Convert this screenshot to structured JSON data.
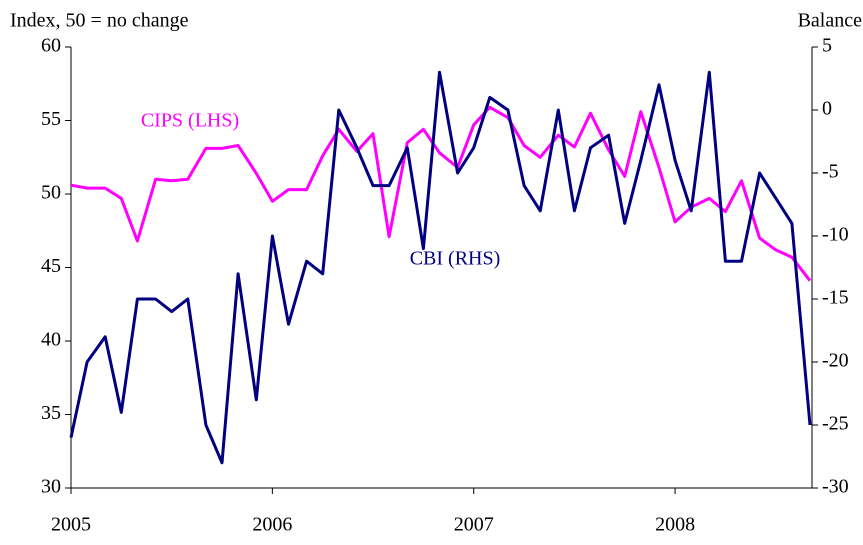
{
  "chart_data": {
    "type": "line",
    "y_label": "Index, 50 = no change",
    "y2_label": "Balance",
    "x": [
      2005,
      2005.08,
      2005.17,
      2005.25,
      2005.33,
      2005.42,
      2005.5,
      2005.58,
      2005.67,
      2005.75,
      2005.83,
      2005.92,
      2006,
      2006.08,
      2006.17,
      2006.25,
      2006.33,
      2006.42,
      2006.5,
      2006.58,
      2006.67,
      2006.75,
      2006.83,
      2006.92,
      2007,
      2007.08,
      2007.17,
      2007.25,
      2007.33,
      2007.42,
      2007.5,
      2007.58,
      2007.67,
      2007.75,
      2007.83,
      2007.92,
      2008,
      2008.08,
      2008.17,
      2008.25,
      2008.33,
      2008.42,
      2008.5,
      2008.58,
      2008.67
    ],
    "xlim": [
      2005,
      2008.68
    ],
    "xticks": [
      2005,
      2006,
      2007,
      2008
    ],
    "ylim": [
      30,
      60
    ],
    "yticks": [
      30,
      35,
      40,
      45,
      50,
      55,
      60
    ],
    "y2lim": [
      -30,
      5
    ],
    "y2ticks": [
      -30,
      -25,
      -20,
      -15,
      -10,
      -5,
      0,
      5
    ],
    "grid": false,
    "series": [
      {
        "name": "CIPS (LHS)",
        "color": "#ff00ff",
        "axis": "y",
        "values": [
          50.6,
          50.4,
          50.4,
          49.7,
          46.8,
          51.0,
          50.9,
          51.0,
          53.1,
          53.1,
          53.3,
          51.4,
          49.5,
          50.3,
          50.3,
          52.6,
          54.4,
          52.9,
          54.1,
          47.1,
          53.5,
          54.4,
          52.8,
          51.8,
          54.7,
          55.9,
          55.2,
          53.3,
          52.5,
          54.0,
          53.2,
          55.5,
          53.0,
          51.2,
          55.6,
          51.8,
          48.1,
          49.1,
          49.7,
          48.8,
          50.9,
          47.0,
          46.2,
          45.7,
          44.1
        ]
      },
      {
        "name": "CBI (RHS)",
        "color": "#000080",
        "axis": "y2",
        "values": [
          -26,
          -20,
          -18,
          -24,
          -15,
          -15,
          -16,
          -15,
          -25,
          -28,
          -13,
          -23,
          -10,
          -17,
          -12,
          -13,
          0,
          -3,
          -6,
          -6,
          -3,
          -11,
          3,
          -5,
          -3,
          1,
          0,
          -6,
          -8,
          0,
          -8,
          -3,
          -2,
          -9,
          -4,
          2,
          -4,
          -8,
          3,
          -12,
          -12,
          -5,
          -7,
          -9,
          -25
        ]
      }
    ]
  }
}
